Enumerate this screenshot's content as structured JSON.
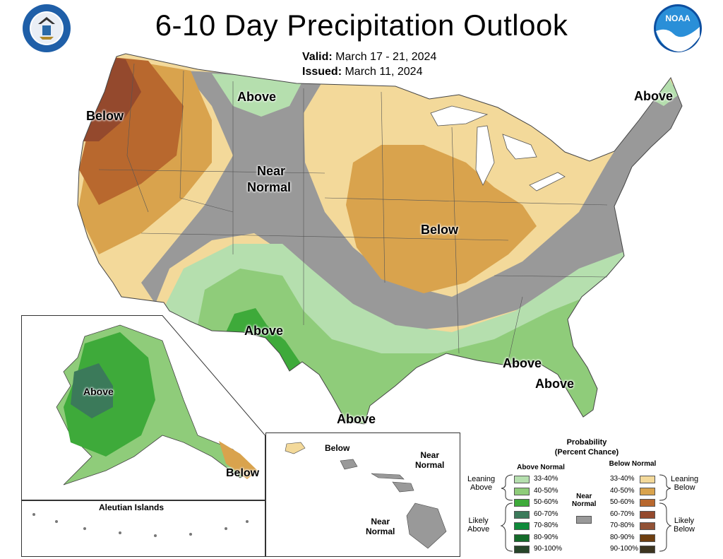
{
  "title": "6-10 Day Precipitation Outlook",
  "valid": {
    "label": "Valid:",
    "value": "March 17 - 21, 2024"
  },
  "issued": {
    "label": "Issued:",
    "value": "March 11, 2024"
  },
  "map_labels": {
    "below_nw": "Below",
    "above_north": "Above",
    "near_normal_center": "Near",
    "near_normal_center2": "Normal",
    "below_center": "Below",
    "above_ne": "Above",
    "above_sw": "Above",
    "above_se1": "Above",
    "above_se2": "Above",
    "above_gulf": "Above",
    "alaska_above": "Above",
    "alaska_below": "Below",
    "aleutian": "Aleutian Islands",
    "hawaii_below": "Below",
    "hawaii_near1": "Near\nNormal",
    "hawaii_near2": "Near\nNormal"
  },
  "legend": {
    "title": "Probability",
    "subtitle": "(Percent Chance)",
    "above_head": "Above Normal",
    "below_head": "Below Normal",
    "near_head": "Near\nNormal",
    "leaning_above": "Leaning\nAbove",
    "likely_above": "Likely\nAbove",
    "leaning_below": "Leaning\nBelow",
    "likely_below": "Likely\nBelow",
    "above": [
      {
        "range": "33-40%",
        "color": "#b5dfae"
      },
      {
        "range": "40-50%",
        "color": "#8fcc7a"
      },
      {
        "range": "50-60%",
        "color": "#3eaa3a"
      },
      {
        "range": "60-70%",
        "color": "#3b7a5a"
      },
      {
        "range": "70-80%",
        "color": "#0f8a3a"
      },
      {
        "range": "80-90%",
        "color": "#146b2a"
      },
      {
        "range": "90-100%",
        "color": "#27462a"
      }
    ],
    "below": [
      {
        "range": "33-40%",
        "color": "#f3d99a"
      },
      {
        "range": "40-50%",
        "color": "#d9a34d"
      },
      {
        "range": "50-60%",
        "color": "#b8682e"
      },
      {
        "range": "60-70%",
        "color": "#94492d"
      },
      {
        "range": "70-80%",
        "color": "#925236"
      },
      {
        "range": "80-90%",
        "color": "#6e3f10"
      },
      {
        "range": "90-100%",
        "color": "#3d3520"
      }
    ],
    "near_color": "#999999"
  },
  "logos": {
    "commerce": "department-of-commerce-seal",
    "noaa": "NOAA"
  }
}
